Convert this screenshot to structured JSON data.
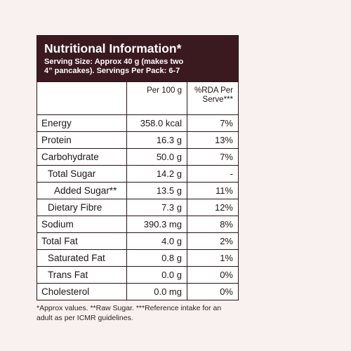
{
  "header": {
    "title": "Nutritional Information*",
    "serving_line1": "Serving Size: Approx 40 g (makes two",
    "serving_line2": "4” pancakes). Servings Per Pack: 6-7"
  },
  "columns": {
    "per100g": "Per 100 g",
    "rda_line1": "%RDA Per",
    "rda_line2": "Serve***"
  },
  "rows": [
    {
      "label": "Energy",
      "per100g": "358.0 kcal",
      "rda": "7%",
      "indent": 0
    },
    {
      "label": "Protein",
      "per100g": "16.3 g",
      "rda": "13%",
      "indent": 0
    },
    {
      "label": "Carbohydrate",
      "per100g": "50.0 g",
      "rda": "7%",
      "indent": 0
    },
    {
      "label": "Total Sugar",
      "per100g": "14.2 g",
      "rda": "-",
      "indent": 1
    },
    {
      "label": "Added Sugar**",
      "per100g": "13.5 g",
      "rda": "11%",
      "indent": 2
    },
    {
      "label": "Dietary Fibre",
      "per100g": "7.3 g",
      "rda": "12%",
      "indent": 1
    },
    {
      "label": "Sodium",
      "per100g": "390.3 mg",
      "rda": "8%",
      "indent": 0
    },
    {
      "label": "Total Fat",
      "per100g": "4.0 g",
      "rda": "2%",
      "indent": 0
    },
    {
      "label": "Saturated Fat",
      "per100g": "0.8 g",
      "rda": "1%",
      "indent": 1
    },
    {
      "label": "Trans Fat",
      "per100g": "0.0 g",
      "rda": "0%",
      "indent": 1
    },
    {
      "label": "Cholesterol",
      "per100g": "0.0 mg",
      "rda": "0%",
      "indent": 0
    }
  ],
  "footnote": {
    "line1": "*Approx values. **Raw Sugar. ***Reference intake for an",
    "line2": "adult as per ICMR guidelines."
  },
  "colors": {
    "header_bg": "#3b1a1f",
    "page_bg": "#f8f1ef"
  }
}
